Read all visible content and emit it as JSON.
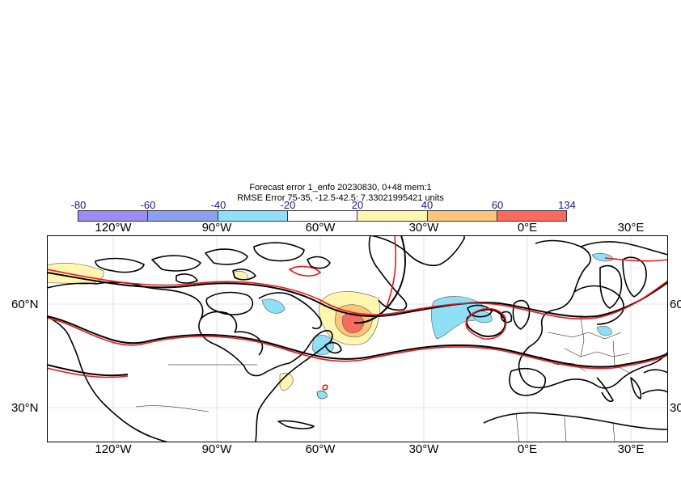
{
  "title": {
    "line1": "Forecast error  1_enfo 20230830, 0+48 mem:1",
    "line2": "RMSE Error 75-35, -12.5-42.5: 7.33021995421 units"
  },
  "colorbar": {
    "labels": [
      "-80",
      "-60",
      "-40",
      "-20",
      "20",
      "40",
      "60",
      "134"
    ],
    "colors": [
      "#9b8df5",
      "#8aa0f2",
      "#8fe0f7",
      "#ffffff",
      "#fff6b0",
      "#fcc57a",
      "#f86b5e"
    ]
  },
  "axes": {
    "lon_top": [
      "120°W",
      "90°W",
      "60°W",
      "30°W",
      "0°E",
      "30°E"
    ],
    "lon_bottom": [
      "120°W",
      "90°W",
      "60°W",
      "30°W",
      "0°E",
      "30°E"
    ],
    "lat_left": [
      "60°N",
      "30°N"
    ],
    "lat_right": [
      "60",
      "30"
    ]
  },
  "map": {
    "extent": {
      "lon": [
        -140,
        40
      ],
      "lat": [
        20,
        80
      ]
    },
    "layers": [
      "coastlines",
      "country-borders",
      "forecast-contours-black",
      "analysis-contours-red",
      "error-shading"
    ]
  }
}
